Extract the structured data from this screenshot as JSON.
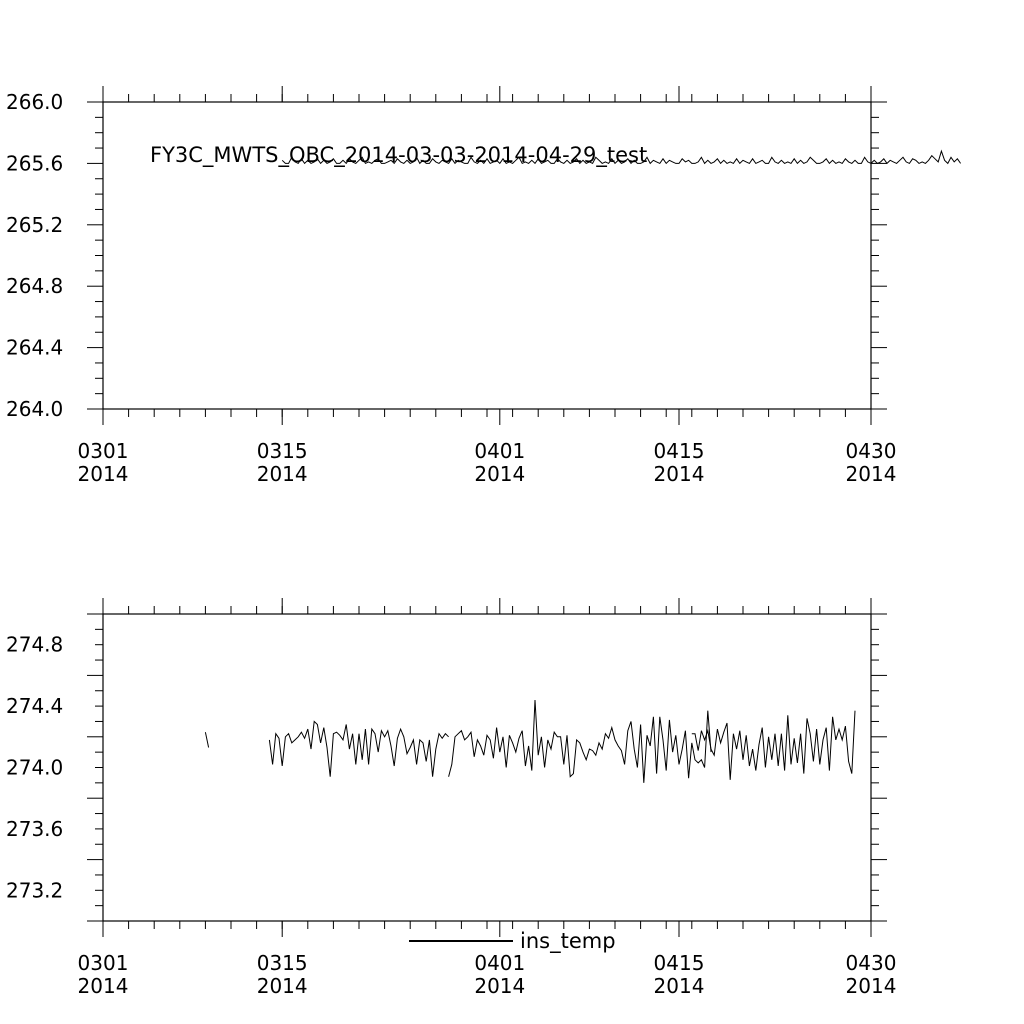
{
  "chart_data": [
    {
      "type": "line",
      "title": "FY3C_MWTS_OBC_2014-03-03-2014-04-29_test",
      "xlabel": "",
      "ylabel": "",
      "x_tick_labels": [
        [
          "0301",
          "2014"
        ],
        [
          "0315",
          "2014"
        ],
        [
          "0401",
          "2014"
        ],
        [
          "0415",
          "2014"
        ],
        [
          "0430",
          "2014"
        ]
      ],
      "x_tick_dates": [
        "2014-03-01",
        "2014-03-15",
        "2014-04-01",
        "2014-04-15",
        "2014-04-30"
      ],
      "xlim": [
        "2014-03-01",
        "2014-04-30"
      ],
      "ylim": [
        264.0,
        266.0
      ],
      "y_tick_labels": [
        "264.0",
        "264.4",
        "264.8",
        "265.2",
        "265.6",
        "266.0"
      ],
      "grid": false,
      "series": [
        {
          "start_date": "2014-03-15",
          "step_days": 0.25,
          "values": [
            265.62,
            265.6,
            265.6,
            265.64,
            265.61,
            265.6,
            265.63,
            265.6,
            265.62,
            265.6,
            265.61,
            265.63,
            265.6,
            265.62,
            265.6,
            265.61,
            265.63,
            265.6,
            265.6,
            265.62,
            265.6,
            265.63,
            265.61,
            265.6,
            265.62,
            265.64,
            265.6,
            265.61,
            265.6,
            265.62,
            265.63,
            265.6,
            265.6,
            265.61,
            265.62,
            265.6,
            265.63,
            265.61,
            265.6,
            265.62,
            265.6,
            265.61,
            265.64,
            265.6,
            265.62,
            265.6,
            265.6,
            265.63,
            265.61,
            265.6,
            265.62,
            265.61,
            265.6,
            265.63,
            265.6,
            265.62,
            265.61,
            265.6,
            265.6,
            265.64,
            265.61,
            265.6,
            265.62,
            265.6,
            265.63,
            265.6,
            265.61,
            265.62,
            265.6,
            265.63,
            265.6,
            265.61,
            265.6,
            265.62,
            265.64,
            265.6,
            265.61,
            265.6,
            265.62,
            265.6,
            265.63,
            265.6,
            265.61,
            265.62,
            265.6,
            265.6,
            265.63,
            265.61,
            265.6,
            265.62,
            265.6,
            265.61,
            265.63,
            265.6,
            265.62,
            265.6,
            265.61,
            265.6,
            265.64,
            265.62,
            265.6,
            265.61,
            265.6,
            265.63,
            265.6,
            265.62,
            265.6,
            265.61,
            265.63,
            265.6,
            265.62,
            265.6,
            265.6,
            265.61,
            265.64,
            265.6,
            265.62,
            265.61,
            265.6,
            265.63,
            265.6,
            265.62,
            265.61,
            265.6,
            265.6,
            265.63,
            265.61,
            265.62,
            265.6,
            265.6,
            265.61,
            265.64,
            265.6,
            265.62,
            265.6,
            265.61,
            265.63,
            265.6,
            265.62,
            265.6,
            265.61,
            265.6,
            265.63,
            265.6,
            265.62,
            265.61,
            265.6,
            265.63,
            265.6,
            265.61,
            265.62,
            265.6,
            265.6,
            265.64,
            265.61,
            265.6,
            265.62,
            265.6,
            265.61,
            265.6,
            265.63,
            265.6,
            265.62,
            265.6,
            265.61,
            265.64,
            265.62,
            265.6,
            265.6,
            265.61,
            265.63,
            265.6,
            265.62,
            265.6,
            265.61,
            265.6,
            265.63,
            265.61,
            265.6,
            265.62,
            265.6,
            265.6,
            265.64,
            265.61,
            265.6,
            265.62,
            265.6,
            265.61,
            265.63,
            265.6,
            265.62,
            265.61,
            265.6,
            265.62,
            265.64,
            265.61,
            265.6,
            265.63,
            265.62,
            265.6,
            265.61,
            265.6,
            265.62,
            265.65,
            265.63,
            265.61,
            265.68,
            265.62,
            265.6,
            265.64,
            265.61,
            265.63,
            265.6
          ]
        }
      ]
    },
    {
      "type": "line",
      "title": "",
      "xlabel": "",
      "ylabel": "",
      "x_tick_labels": [
        [
          "0301",
          "2014"
        ],
        [
          "0315",
          "2014"
        ],
        [
          "0401",
          "2014"
        ],
        [
          "0415",
          "2014"
        ],
        [
          "0430",
          "2014"
        ]
      ],
      "x_tick_dates": [
        "2014-03-01",
        "2014-03-15",
        "2014-04-01",
        "2014-04-15",
        "2014-04-30"
      ],
      "xlim": [
        "2014-03-01",
        "2014-04-30"
      ],
      "ylim": [
        273.0,
        275.0
      ],
      "y_tick_labels": [
        "273.2",
        "273.6",
        "274.0",
        "274.4",
        "274.8"
      ],
      "grid": false,
      "legend_position": "bottom-center",
      "series": [
        {
          "name": "ins_temp",
          "segments": [
            {
              "start_date": "2014-03-09",
              "step_days": 0.25,
              "values": [
                274.23,
                274.13
              ]
            },
            {
              "start_date": "2014-03-14",
              "step_days": 0.25,
              "values": [
                274.18,
                274.02,
                274.22,
                274.19,
                274.01,
                274.2,
                274.22,
                274.16,
                274.18,
                274.2,
                274.23,
                274.19,
                274.25,
                274.12,
                274.3,
                274.28,
                274.16,
                274.26,
                274.13,
                273.94,
                274.22,
                274.23,
                274.21,
                274.18,
                274.28,
                274.12,
                274.22,
                274.02,
                274.22,
                274.05,
                274.25,
                274.02,
                274.25,
                274.22,
                274.1,
                274.24,
                274.2,
                274.24,
                274.14,
                274.01,
                274.19,
                274.25,
                274.2,
                274.09,
                274.13,
                274.18,
                274.02,
                274.18,
                274.16,
                274.04,
                274.18,
                273.94,
                274.12,
                274.22,
                274.19,
                274.22,
                274.2
              ]
            },
            {
              "start_date": "2014-03-28",
              "step_days": 0.25,
              "values": [
                273.94,
                274.02,
                274.2,
                274.22,
                274.24,
                274.18,
                274.2,
                274.23,
                274.07,
                274.18,
                274.14,
                274.08,
                274.21,
                274.18,
                274.06,
                274.26,
                274.1,
                274.2,
                274.0,
                274.21,
                274.16,
                274.1,
                274.19,
                274.24,
                274.01,
                274.14,
                273.98,
                274.44,
                274.08,
                274.2,
                274.0,
                274.18,
                274.12,
                274.23,
                274.2,
                274.2,
                274.02,
                274.21,
                273.94,
                273.96,
                274.18,
                274.16,
                274.1,
                274.05,
                274.12,
                274.11,
                274.08,
                274.16,
                274.12,
                274.22,
                274.19,
                274.26,
                274.18,
                274.14,
                274.11,
                274.02,
                274.24,
                274.3,
                274.12,
                274.0,
                274.28,
                273.9,
                274.21,
                274.14,
                274.33,
                273.96,
                274.33,
                274.18,
                273.98,
                274.31,
                274.1,
                274.21,
                274.02,
                274.12,
                274.24,
                273.93,
                274.16,
                274.05,
                274.03,
                274.05,
                274.0,
                274.37,
                274.1
              ]
            },
            {
              "start_date": "2014-04-16",
              "step_days": 0.25,
              "values": [
                274.22,
                274.22,
                274.11,
                274.24,
                274.18,
                274.24,
                274.12,
                274.08,
                274.25,
                274.16,
                274.23,
                274.29,
                273.92,
                274.22,
                274.12,
                274.24,
                274.05,
                274.21,
                274.01,
                274.12,
                273.98,
                274.15,
                274.26,
                274.0,
                274.2,
                274.05,
                274.22,
                274.01,
                274.22,
                273.98,
                274.34,
                274.02,
                274.19,
                274.03,
                274.22,
                273.96,
                274.32,
                274.22,
                274.04,
                274.25,
                274.02,
                274.18,
                274.26,
                273.98,
                274.33,
                274.18,
                274.25,
                274.18,
                274.27,
                274.04,
                273.96,
                274.37
              ]
            }
          ]
        }
      ]
    }
  ]
}
